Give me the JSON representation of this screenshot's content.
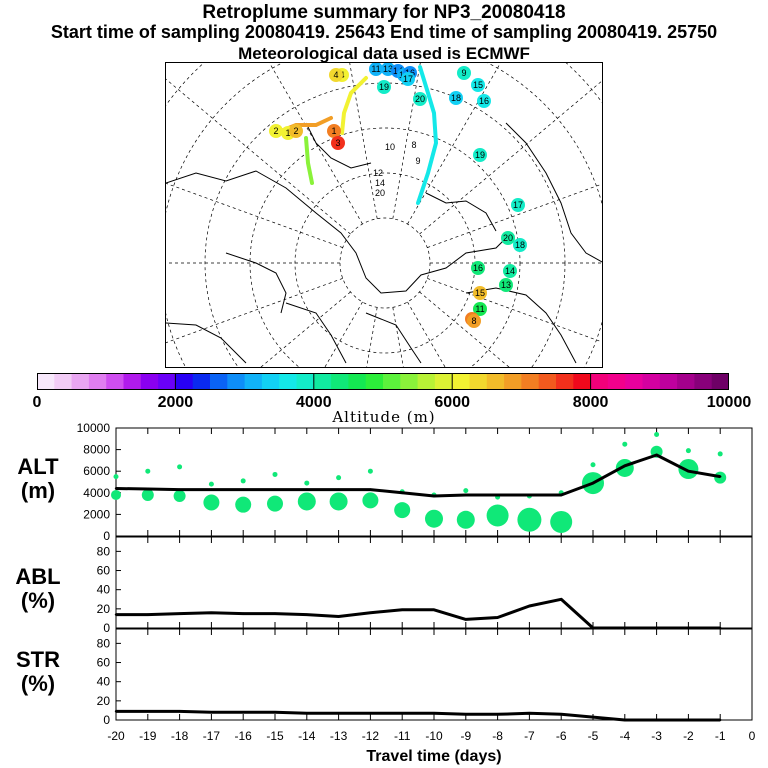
{
  "header": {
    "title": "Retroplume summary for NP3_20080418",
    "sampling_line": "Start time of sampling 20080419. 25643     End time of sampling 20080419. 25750",
    "met_line": "Meteorological data used is ECMWF"
  },
  "map": {
    "label_numbers": [
      "4",
      "4",
      "11",
      "13",
      "14",
      "15",
      "16",
      "17",
      "19",
      "20",
      "18",
      "9",
      "15",
      "16",
      "2",
      "1",
      "2",
      "1",
      "3",
      "10",
      "8",
      "9",
      "12",
      "14",
      "20",
      "19",
      "17",
      "20",
      "18",
      "16",
      "15",
      "14",
      "13",
      "11",
      "9",
      "8"
    ]
  },
  "colorbar": {
    "title": "Altitude (m)",
    "ticks": [
      "0",
      "2000",
      "4000",
      "6000",
      "8000",
      "10000"
    ],
    "colors": [
      "#f7e8fb",
      "#f2ccf6",
      "#e9a6f2",
      "#e07ef0",
      "#cf4ef0",
      "#b11bec",
      "#8a00f0",
      "#6a00f8",
      "#2800f5",
      "#0a2af0",
      "#0a63f5",
      "#0e8ef8",
      "#11b2f8",
      "#12d0f4",
      "#14e8e8",
      "#13ecc8",
      "#11eaa0",
      "#10e878",
      "#14e852",
      "#2cee3a",
      "#5cf23c",
      "#8af23a",
      "#b8f236",
      "#dcf234",
      "#f2f232",
      "#f2d82e",
      "#f2bc2a",
      "#f29e26",
      "#f27e22",
      "#f25a1e",
      "#f2301c",
      "#f0081c",
      "#f2007a",
      "#f2008c",
      "#e8009e",
      "#d400a0",
      "#be009e",
      "#a4008c",
      "#88007a",
      "#6e0066"
    ]
  },
  "chart_data": [
    {
      "type": "line",
      "panel": "ALT",
      "label": "ALT\n(m)",
      "x": [
        -20,
        -19,
        -18,
        -17,
        -16,
        -15,
        -14,
        -13,
        -12,
        -11,
        -10,
        -9,
        -8,
        -7,
        -6,
        -5,
        -4,
        -3,
        -2,
        -1
      ],
      "y": [
        4400,
        4350,
        4300,
        4300,
        4300,
        4300,
        4300,
        4300,
        4300,
        4000,
        3700,
        3800,
        3800,
        3800,
        3800,
        4900,
        6500,
        7500,
        6000,
        5500
      ],
      "ylim": [
        0,
        10000
      ],
      "yticks": [
        "10000",
        "8000",
        "6000",
        "4000",
        "2000",
        "0"
      ],
      "clusters": [
        {
          "x": -20,
          "y": 3800,
          "size": 5,
          "color": "#10e878"
        },
        {
          "x": -19,
          "y": 3800,
          "size": 6,
          "color": "#10e878"
        },
        {
          "x": -18,
          "y": 3700,
          "size": 6,
          "color": "#10e878"
        },
        {
          "x": -17,
          "y": 3100,
          "size": 8,
          "color": "#10e878"
        },
        {
          "x": -16,
          "y": 2900,
          "size": 8,
          "color": "#10e878"
        },
        {
          "x": -15,
          "y": 3000,
          "size": 8,
          "color": "#10e878"
        },
        {
          "x": -14,
          "y": 3200,
          "size": 9,
          "color": "#10e878"
        },
        {
          "x": -13,
          "y": 3200,
          "size": 9,
          "color": "#10e878"
        },
        {
          "x": -12,
          "y": 3300,
          "size": 8,
          "color": "#10e878"
        },
        {
          "x": -11,
          "y": 2400,
          "size": 8,
          "color": "#10e878"
        },
        {
          "x": -10,
          "y": 1600,
          "size": 9,
          "color": "#10e878"
        },
        {
          "x": -9,
          "y": 1500,
          "size": 9,
          "color": "#10e878"
        },
        {
          "x": -8,
          "y": 1900,
          "size": 11,
          "color": "#10e878"
        },
        {
          "x": -7,
          "y": 1500,
          "size": 12,
          "color": "#10e878"
        },
        {
          "x": -6,
          "y": 1300,
          "size": 11,
          "color": "#10e878"
        },
        {
          "x": -5,
          "y": 4900,
          "size": 11,
          "color": "#10e878"
        },
        {
          "x": -4,
          "y": 6300,
          "size": 9,
          "color": "#10e878"
        },
        {
          "x": -3,
          "y": 7800,
          "size": 6,
          "color": "#10e878"
        },
        {
          "x": -2,
          "y": 6200,
          "size": 10,
          "color": "#10e878"
        },
        {
          "x": -1,
          "y": 5400,
          "size": 6,
          "color": "#10e878"
        }
      ]
    },
    {
      "type": "line",
      "panel": "ABL",
      "label": "ABL\n(%)",
      "x": [
        -20,
        -19,
        -18,
        -17,
        -16,
        -15,
        -14,
        -13,
        -12,
        -11,
        -10,
        -9,
        -8,
        -7,
        -6,
        -5,
        -4,
        -3,
        -2,
        -1
      ],
      "y": [
        14,
        14,
        15,
        16,
        15,
        15,
        14,
        12,
        16,
        19,
        19,
        9,
        11,
        23,
        30,
        0,
        0,
        0,
        0,
        0
      ],
      "ylim": [
        0,
        95
      ],
      "yticks": [
        "80",
        "60",
        "40",
        "20",
        "0"
      ]
    },
    {
      "type": "line",
      "panel": "STR",
      "label": "STR\n(%)",
      "x": [
        -20,
        -19,
        -18,
        -17,
        -16,
        -15,
        -14,
        -13,
        -12,
        -11,
        -10,
        -9,
        -8,
        -7,
        -6,
        -5,
        -4,
        -3,
        -2,
        -1
      ],
      "y": [
        9,
        9,
        9,
        8,
        8,
        8,
        7,
        7,
        7,
        7,
        7,
        6,
        6,
        7,
        6,
        3,
        0,
        0,
        0,
        0
      ],
      "ylim": [
        0,
        95
      ],
      "yticks": [
        "80",
        "60",
        "40",
        "20",
        "0"
      ],
      "xlabel": "Travel time (days)",
      "xticklabels": [
        "-20",
        "-19",
        "-18",
        "-17",
        "-16",
        "-15",
        "-14",
        "-13",
        "-12",
        "-11",
        "-10",
        "-9",
        "-8",
        "-7",
        "-6",
        "-5",
        "-4",
        "-3",
        "-2",
        "-1",
        "0"
      ]
    }
  ]
}
